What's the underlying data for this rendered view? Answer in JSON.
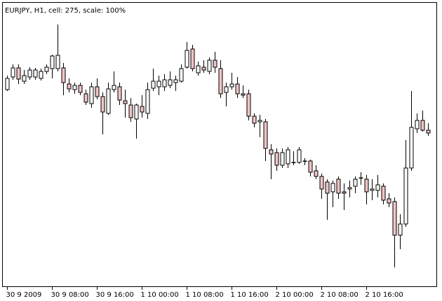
{
  "chart_data": {
    "type": "candlestick",
    "title": "EURJPY, H1, cell: 275, scale: 100%",
    "categories": [
      "30 9 2009",
      null,
      null,
      null,
      null,
      null,
      null,
      null,
      "30 9 08:00",
      null,
      null,
      null,
      null,
      null,
      null,
      null,
      "30 9 16:00",
      null,
      null,
      null,
      null,
      null,
      null,
      null,
      "1 10 00:00",
      null,
      null,
      null,
      null,
      null,
      null,
      null,
      "1 10 08:00",
      null,
      null,
      null,
      null,
      null,
      null,
      null,
      "1 10 16:00",
      null,
      null,
      null,
      null,
      null,
      null,
      null,
      "2 10 00:00",
      null,
      null,
      null,
      null,
      null,
      null,
      null,
      "2 10 08:00",
      null,
      null,
      null,
      null,
      null,
      null,
      null,
      "2 10 16:00",
      null,
      null,
      null,
      null,
      null,
      null,
      null,
      null,
      null,
      null,
      null
    ],
    "open": [
      277,
      295,
      308,
      289,
      295,
      295,
      293,
      303,
      307,
      307,
      308,
      285,
      277,
      283,
      271,
      257,
      281,
      267,
      243,
      277,
      281,
      261,
      255,
      235,
      253,
      243,
      279,
      281,
      281,
      283,
      287,
      289,
      309,
      335,
      301,
      309,
      303,
      319,
      307,
      273,
      281,
      285,
      271,
      271,
      239,
      231,
      231,
      191,
      187,
      169,
      171,
      173,
      173,
      175,
      175,
      161,
      153,
      145,
      131,
      149,
      131,
      135,
      139,
      151,
      149,
      133,
      133,
      139,
      121,
      117,
      69,
      85,
      165,
      221,
      233,
      219
    ],
    "high": [
      297,
      313,
      313,
      305,
      309,
      308,
      307,
      313,
      327,
      370,
      315,
      293,
      287,
      287,
      277,
      287,
      293,
      273,
      287,
      303,
      287,
      277,
      265,
      257,
      269,
      287,
      307,
      297,
      299,
      303,
      297,
      313,
      345,
      341,
      317,
      319,
      323,
      331,
      319,
      287,
      301,
      295,
      283,
      277,
      243,
      241,
      235,
      199,
      193,
      193,
      195,
      189,
      195,
      179,
      177,
      169,
      157,
      149,
      147,
      153,
      143,
      147,
      153,
      159,
      155,
      149,
      155,
      143,
      129,
      123,
      99,
      205,
      275,
      243,
      247,
      229
    ],
    "low": [
      275,
      291,
      285,
      285,
      291,
      291,
      290,
      299,
      293,
      303,
      269,
      273,
      271,
      269,
      255,
      251,
      263,
      213,
      241,
      273,
      255,
      237,
      231,
      207,
      237,
      235,
      275,
      269,
      275,
      279,
      275,
      287,
      307,
      303,
      297,
      301,
      299,
      301,
      265,
      253,
      277,
      265,
      265,
      233,
      223,
      209,
      175,
      149,
      161,
      165,
      165,
      169,
      171,
      169,
      153,
      149,
      121,
      91,
      109,
      121,
      105,
      123,
      129,
      141,
      113,
      119,
      123,
      113,
      109,
      23,
      49,
      81,
      161,
      215,
      217,
      211
    ],
    "close": [
      293,
      308,
      292,
      297,
      305,
      305,
      303,
      309,
      325,
      326,
      287,
      278,
      283,
      273,
      259,
      281,
      267,
      245,
      278,
      283,
      262,
      257,
      237,
      255,
      245,
      277,
      289,
      289,
      291,
      291,
      291,
      307,
      333,
      307,
      311,
      305,
      319,
      309,
      271,
      281,
      285,
      271,
      269,
      239,
      229,
      233,
      193,
      185,
      169,
      187,
      191,
      173,
      191,
      175,
      159,
      153,
      135,
      129,
      143,
      129,
      129,
      137,
      149,
      151,
      131,
      135,
      141,
      119,
      115,
      69,
      85,
      165,
      223,
      233,
      219,
      215
    ],
    "ylim": [
      0,
      400
    ],
    "up_color": "#ffffff",
    "down_color": "#f2c4c4",
    "line_color": "#000000"
  }
}
